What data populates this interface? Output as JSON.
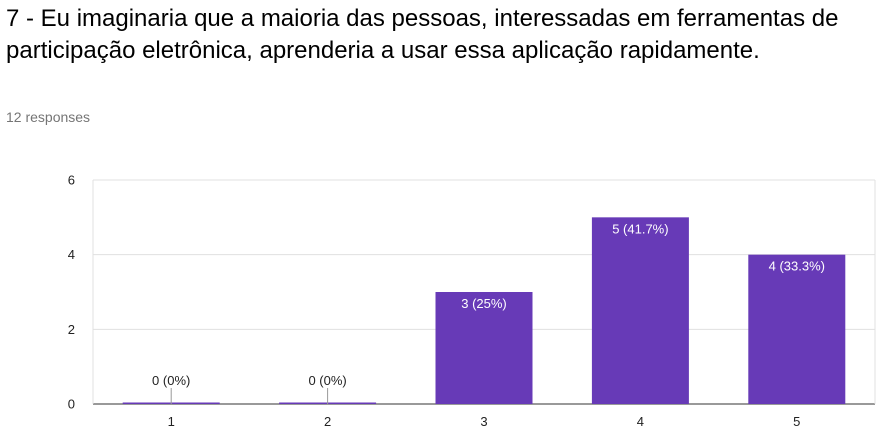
{
  "question": {
    "title": "7 - Eu imaginaria que a maioria das pessoas, interessadas em ferramentas de participação eletrônica, aprenderia a usar essa aplicação rapidamente.",
    "response_count": "12 responses"
  },
  "colors": {
    "bar": "#673ab7",
    "bar_label_inside": "#ffffff",
    "bar_label_outside": "#222222",
    "gridline": "#e0e0e0",
    "axis": "#333333"
  },
  "chart_data": {
    "type": "bar",
    "categories": [
      "1",
      "2",
      "3",
      "4",
      "5"
    ],
    "values": [
      0,
      0,
      3,
      5,
      4
    ],
    "data_labels": [
      "0 (0%)",
      "0 (0%)",
      "3 (25%)",
      "5 (41.7%)",
      "4 (33.3%)"
    ],
    "y_ticks": [
      0,
      2,
      4,
      6
    ],
    "ylim": [
      0,
      6
    ],
    "grid": true,
    "legend": "none"
  }
}
